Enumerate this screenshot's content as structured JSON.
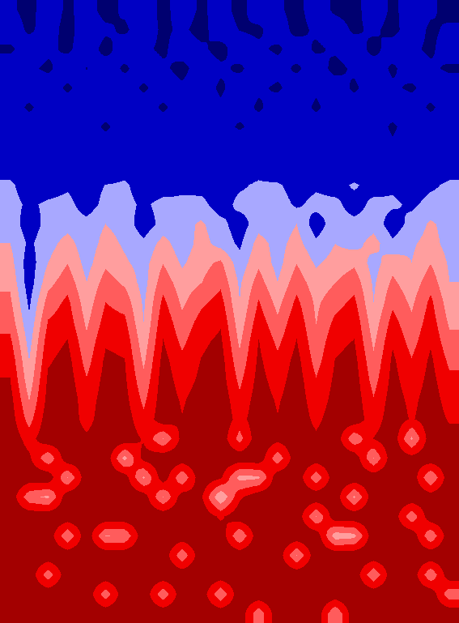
{
  "chart_data": {
    "type": "contour",
    "tick_labels": false,
    "zlim": [
      0,
      1
    ],
    "z": [
      [
        0.15,
        0.08,
        0.2,
        0.1,
        0.18,
        0.08,
        0.15,
        0.22,
        0.08,
        0.2,
        0.1,
        0.18,
        0.08,
        0.2,
        0.15,
        0.08,
        0.2,
        0.1,
        0.08,
        0.2,
        0.1,
        0.18,
        0.15,
        0.08
      ],
      [
        0.2,
        0.1,
        0.18,
        0.08,
        0.2,
        0.15,
        0.1,
        0.2,
        0.1,
        0.15,
        0.08,
        0.2,
        0.12,
        0.1,
        0.2,
        0.08,
        0.15,
        0.2,
        0.1,
        0.15,
        0.08,
        0.2,
        0.1,
        0.15
      ],
      [
        0.1,
        0.2,
        0.15,
        0.1,
        0.2,
        0.08,
        0.2,
        0.15,
        0.1,
        0.2,
        0.15,
        0.08,
        0.2,
        0.15,
        0.1,
        0.2,
        0.1,
        0.15,
        0.2,
        0.08,
        0.2,
        0.15,
        0.1,
        0.2
      ],
      [
        0.2,
        0.15,
        0.1,
        0.2,
        0.12,
        0.2,
        0.1,
        0.2,
        0.15,
        0.08,
        0.2,
        0.15,
        0.1,
        0.2,
        0.18,
        0.1,
        0.2,
        0.08,
        0.15,
        0.2,
        0.1,
        0.2,
        0.15,
        0.1
      ],
      [
        0.15,
        0.2,
        0.2,
        0.1,
        0.2,
        0.15,
        0.2,
        0.1,
        0.2,
        0.15,
        0.2,
        0.1,
        0.2,
        0.15,
        0.1,
        0.2,
        0.15,
        0.2,
        0.1,
        0.2,
        0.15,
        0.1,
        0.2,
        0.2
      ],
      [
        0.2,
        0.1,
        0.2,
        0.2,
        0.15,
        0.2,
        0.15,
        0.2,
        0.1,
        0.2,
        0.2,
        0.15,
        0.2,
        0.1,
        0.2,
        0.2,
        0.1,
        0.2,
        0.2,
        0.15,
        0.2,
        0.2,
        0.1,
        0.2
      ],
      [
        0.2,
        0.2,
        0.15,
        0.2,
        0.2,
        0.1,
        0.2,
        0.2,
        0.2,
        0.15,
        0.2,
        0.2,
        0.1,
        0.2,
        0.2,
        0.15,
        0.2,
        0.2,
        0.15,
        0.2,
        0.1,
        0.2,
        0.2,
        0.15
      ],
      [
        0.25,
        0.2,
        0.2,
        0.15,
        0.22,
        0.2,
        0.25,
        0.15,
        0.2,
        0.22,
        0.15,
        0.2,
        0.25,
        0.2,
        0.15,
        0.22,
        0.2,
        0.25,
        0.2,
        0.2,
        0.15,
        0.2,
        0.25,
        0.2
      ],
      [
        0.3,
        0.25,
        0.2,
        0.28,
        0.25,
        0.2,
        0.3,
        0.25,
        0.2,
        0.28,
        0.3,
        0.2,
        0.25,
        0.3,
        0.2,
        0.28,
        0.25,
        0.3,
        0.2,
        0.25,
        0.3,
        0.2,
        0.28,
        0.3
      ],
      [
        0.4,
        0.3,
        0.3,
        0.35,
        0.3,
        0.38,
        0.4,
        0.3,
        0.3,
        0.35,
        0.32,
        0.3,
        0.35,
        0.4,
        0.4,
        0.3,
        0.35,
        0.3,
        0.4,
        0.3,
        0.35,
        0.3,
        0.35,
        0.4
      ],
      [
        0.42,
        0.35,
        0.4,
        0.42,
        0.3,
        0.42,
        0.42,
        0.35,
        0.42,
        0.4,
        0.42,
        0.3,
        0.42,
        0.42,
        0.45,
        0.35,
        0.42,
        0.42,
        0.3,
        0.42,
        0.4,
        0.35,
        0.42,
        0.42
      ],
      [
        0.45,
        0.3,
        0.42,
        0.45,
        0.42,
        0.5,
        0.45,
        0.3,
        0.42,
        0.45,
        0.52,
        0.42,
        0.3,
        0.45,
        0.42,
        0.5,
        0.3,
        0.45,
        0.42,
        0.45,
        0.3,
        0.42,
        0.52,
        0.45
      ],
      [
        0.5,
        0.35,
        0.45,
        0.55,
        0.42,
        0.55,
        0.48,
        0.4,
        0.55,
        0.42,
        0.55,
        0.45,
        0.35,
        0.55,
        0.45,
        0.55,
        0.4,
        0.5,
        0.45,
        0.55,
        0.4,
        0.48,
        0.55,
        0.45
      ],
      [
        0.55,
        0.3,
        0.5,
        0.62,
        0.45,
        0.6,
        0.52,
        0.45,
        0.62,
        0.48,
        0.58,
        0.65,
        0.42,
        0.6,
        0.45,
        0.62,
        0.48,
        0.55,
        0.6,
        0.45,
        0.58,
        0.5,
        0.62,
        0.48
      ],
      [
        0.6,
        0.3,
        0.58,
        0.7,
        0.5,
        0.68,
        0.6,
        0.45,
        0.7,
        0.55,
        0.62,
        0.72,
        0.48,
        0.68,
        0.5,
        0.7,
        0.55,
        0.62,
        0.7,
        0.48,
        0.65,
        0.55,
        0.7,
        0.5
      ],
      [
        0.65,
        0.35,
        0.68,
        0.78,
        0.55,
        0.75,
        0.7,
        0.48,
        0.78,
        0.6,
        0.72,
        0.8,
        0.5,
        0.76,
        0.58,
        0.78,
        0.6,
        0.7,
        0.78,
        0.5,
        0.72,
        0.6,
        0.78,
        0.55
      ],
      [
        0.7,
        0.4,
        0.76,
        0.82,
        0.6,
        0.8,
        0.78,
        0.5,
        0.84,
        0.66,
        0.8,
        0.86,
        0.55,
        0.82,
        0.65,
        0.84,
        0.62,
        0.78,
        0.84,
        0.55,
        0.8,
        0.65,
        0.82,
        0.6
      ],
      [
        0.78,
        0.45,
        0.82,
        0.88,
        0.65,
        0.86,
        0.84,
        0.55,
        0.88,
        0.72,
        0.85,
        0.9,
        0.6,
        0.88,
        0.72,
        0.88,
        0.66,
        0.84,
        0.88,
        0.6,
        0.86,
        0.7,
        0.86,
        0.66
      ],
      [
        0.84,
        0.5,
        0.86,
        0.92,
        0.7,
        0.9,
        0.88,
        0.6,
        0.92,
        0.78,
        0.88,
        0.93,
        0.66,
        0.9,
        0.78,
        0.92,
        0.7,
        0.88,
        0.92,
        0.65,
        0.9,
        0.76,
        0.9,
        0.72
      ],
      [
        0.88,
        0.55,
        0.9,
        0.94,
        0.76,
        0.92,
        0.9,
        0.66,
        0.94,
        0.82,
        0.9,
        0.94,
        0.72,
        0.92,
        0.82,
        0.94,
        0.76,
        0.9,
        0.94,
        0.7,
        0.92,
        0.8,
        0.92,
        0.78
      ],
      [
        0.92,
        0.62,
        0.92,
        0.96,
        0.8,
        0.94,
        0.92,
        0.72,
        0.95,
        0.86,
        0.93,
        0.96,
        0.78,
        0.94,
        0.86,
        0.95,
        0.8,
        0.92,
        0.95,
        0.76,
        0.94,
        0.84,
        0.94,
        0.82
      ],
      [
        0.94,
        0.7,
        0.95,
        0.96,
        0.82,
        0.96,
        0.95,
        0.78,
        0.96,
        0.88,
        0.95,
        0.97,
        0.82,
        0.96,
        0.88,
        0.96,
        0.84,
        0.95,
        0.96,
        0.8,
        0.96,
        0.86,
        0.95,
        0.86
      ],
      [
        0.96,
        0.82,
        0.97,
        0.96,
        0.9,
        0.97,
        0.96,
        0.86,
        0.62,
        0.92,
        0.97,
        0.96,
        0.7,
        0.97,
        0.92,
        0.96,
        0.9,
        0.97,
        0.65,
        0.88,
        0.97,
        0.6,
        0.96,
        0.92
      ],
      [
        0.97,
        0.9,
        0.65,
        0.97,
        0.95,
        0.97,
        0.58,
        0.92,
        0.97,
        0.96,
        0.97,
        0.97,
        0.96,
        0.97,
        0.66,
        0.97,
        0.95,
        0.97,
        0.97,
        0.62,
        0.97,
        0.92,
        0.97,
        0.96
      ],
      [
        0.97,
        0.96,
        0.97,
        0.62,
        0.97,
        0.96,
        0.95,
        0.6,
        0.96,
        0.64,
        0.97,
        0.9,
        0.58,
        0.6,
        0.97,
        0.97,
        0.66,
        0.97,
        0.97,
        0.96,
        0.97,
        0.97,
        0.62,
        0.97
      ],
      [
        0.97,
        0.66,
        0.6,
        0.97,
        0.97,
        0.97,
        0.97,
        0.95,
        0.62,
        0.95,
        0.9,
        0.5,
        0.85,
        0.97,
        0.97,
        0.97,
        0.97,
        0.97,
        0.6,
        0.97,
        0.97,
        0.97,
        0.95,
        0.97
      ],
      [
        0.97,
        0.97,
        0.97,
        0.97,
        0.97,
        0.97,
        0.97,
        0.97,
        0.97,
        0.97,
        0.97,
        0.85,
        0.97,
        0.97,
        0.97,
        0.97,
        0.62,
        0.97,
        0.97,
        0.97,
        0.97,
        0.66,
        0.97,
        0.97
      ],
      [
        0.97,
        0.97,
        0.97,
        0.64,
        0.97,
        0.62,
        0.64,
        0.97,
        0.97,
        0.97,
        0.97,
        0.97,
        0.62,
        0.97,
        0.97,
        0.97,
        0.97,
        0.55,
        0.58,
        0.97,
        0.97,
        0.97,
        0.64,
        0.97
      ],
      [
        0.97,
        0.97,
        0.97,
        0.97,
        0.97,
        0.97,
        0.97,
        0.97,
        0.97,
        0.65,
        0.97,
        0.97,
        0.97,
        0.97,
        0.97,
        0.62,
        0.97,
        0.97,
        0.97,
        0.97,
        0.97,
        0.97,
        0.97,
        0.97
      ],
      [
        0.97,
        0.97,
        0.68,
        0.97,
        0.97,
        0.97,
        0.97,
        0.97,
        0.97,
        0.97,
        0.97,
        0.97,
        0.97,
        0.97,
        0.97,
        0.97,
        0.97,
        0.97,
        0.97,
        0.64,
        0.97,
        0.97,
        0.64,
        0.97
      ],
      [
        0.97,
        0.97,
        0.97,
        0.97,
        0.97,
        0.68,
        0.97,
        0.97,
        0.66,
        0.97,
        0.97,
        0.64,
        0.97,
        0.97,
        0.97,
        0.97,
        0.97,
        0.97,
        0.97,
        0.97,
        0.97,
        0.97,
        0.97,
        0.66
      ],
      [
        0.97,
        0.97,
        0.97,
        0.97,
        0.97,
        0.97,
        0.97,
        0.97,
        0.97,
        0.97,
        0.97,
        0.97,
        0.97,
        0.66,
        0.97,
        0.97,
        0.97,
        0.62,
        0.97,
        0.97,
        0.97,
        0.97,
        0.97,
        0.97
      ]
    ]
  }
}
